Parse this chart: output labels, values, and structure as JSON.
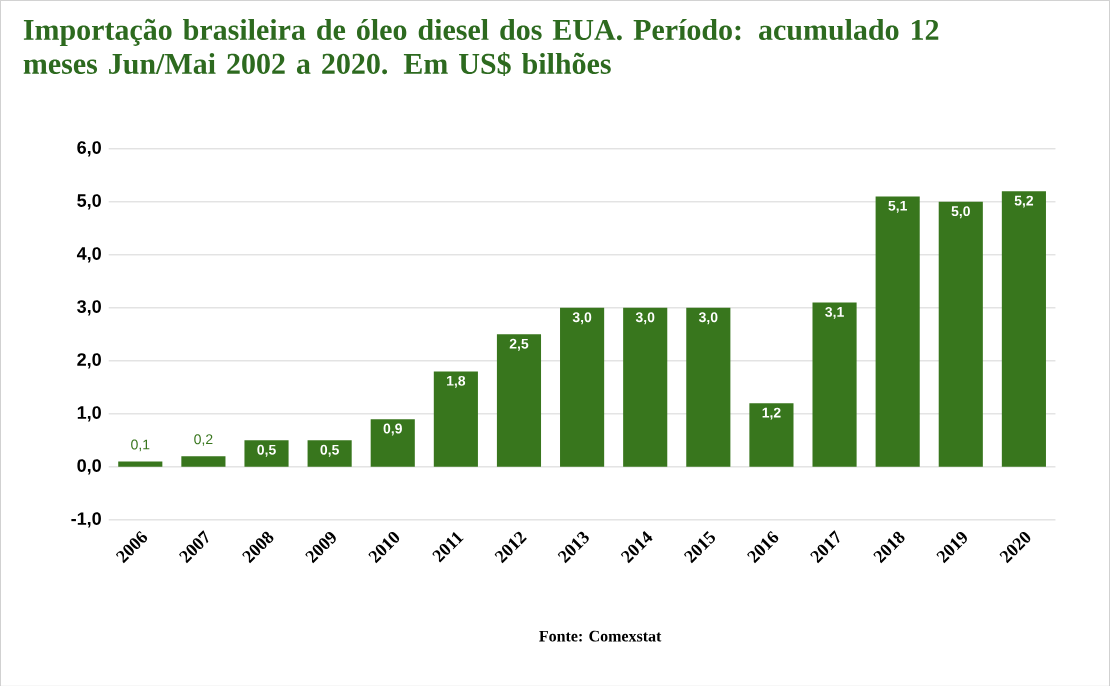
{
  "chart_data": {
    "type": "bar",
    "title": "Importação brasileira de óleo diesel dos EUA. Período: acumulado 12 meses Jun/Mai 2002 a 2020. Em US$ bilhões",
    "categories": [
      "2006",
      "2007",
      "2008",
      "2009",
      "2010",
      "2011",
      "2012",
      "2013",
      "2014",
      "2015",
      "2016",
      "2017",
      "2018",
      "2019",
      "2020"
    ],
    "values": [
      0.1,
      0.2,
      0.5,
      0.5,
      0.9,
      1.8,
      2.5,
      3.0,
      3.0,
      3.0,
      1.2,
      3.1,
      5.1,
      5.0,
      5.2
    ],
    "value_labels": [
      "0,1",
      "0,2",
      "0,5",
      "0,5",
      "0,9",
      "1,8",
      "2,5",
      "3,0",
      "3,0",
      "3,0",
      "1,2",
      "3,1",
      "5,1",
      "5,0",
      "5,2"
    ],
    "color": "#38761d",
    "ylim": [
      -1,
      6
    ],
    "yticks": [
      {
        "value": -1,
        "label": "-1,0"
      },
      {
        "value": 0,
        "label": "0,0"
      },
      {
        "value": 1,
        "label": "1,0"
      },
      {
        "value": 2,
        "label": "2,0"
      },
      {
        "value": 3,
        "label": "3,0"
      },
      {
        "value": 4,
        "label": "4,0"
      },
      {
        "value": 5,
        "label": "5,0"
      },
      {
        "value": 6,
        "label": "6,0"
      }
    ],
    "grid": "y",
    "annotations": [
      "Fonte: Comexstat"
    ]
  }
}
